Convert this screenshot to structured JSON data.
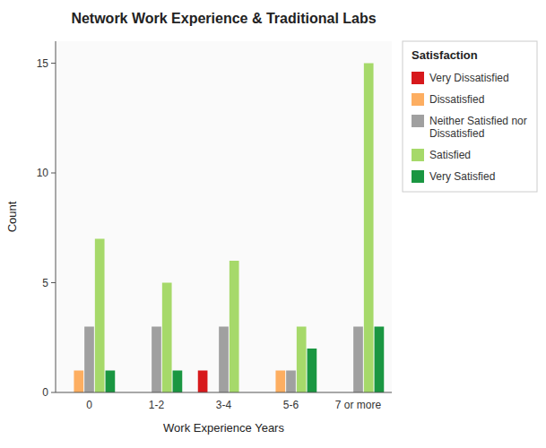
{
  "chart_data": {
    "type": "bar",
    "title": "Network Work Experience & Traditional Labs",
    "x_label": "Work Experience Years",
    "y_label": "Count",
    "categories": [
      "0",
      "1-2",
      "3-4",
      "5-6",
      "7 or more"
    ],
    "series": [
      {
        "name": "Very Dissatisfied",
        "color": "#d7191c",
        "values": [
          0,
          0,
          1,
          0,
          0
        ]
      },
      {
        "name": "Dissatisfied",
        "color": "#fdae61",
        "values": [
          1,
          0,
          0,
          1,
          0
        ]
      },
      {
        "name": "Neither Satisfied nor\nDissatisfied",
        "color": "#a0a0a0",
        "values": [
          3,
          3,
          3,
          1,
          3
        ]
      },
      {
        "name": "Satisfied",
        "color": "#a6d96a",
        "values": [
          7,
          5,
          6,
          3,
          15
        ]
      },
      {
        "name": "Very Satisfied",
        "color": "#1a9641",
        "values": [
          1,
          1,
          0,
          2,
          3
        ]
      }
    ],
    "ylim": [
      0,
      16
    ],
    "yticks": [
      0,
      5,
      10,
      15
    ],
    "grid": false,
    "legend": "right",
    "legend_title": "Satisfaction"
  }
}
